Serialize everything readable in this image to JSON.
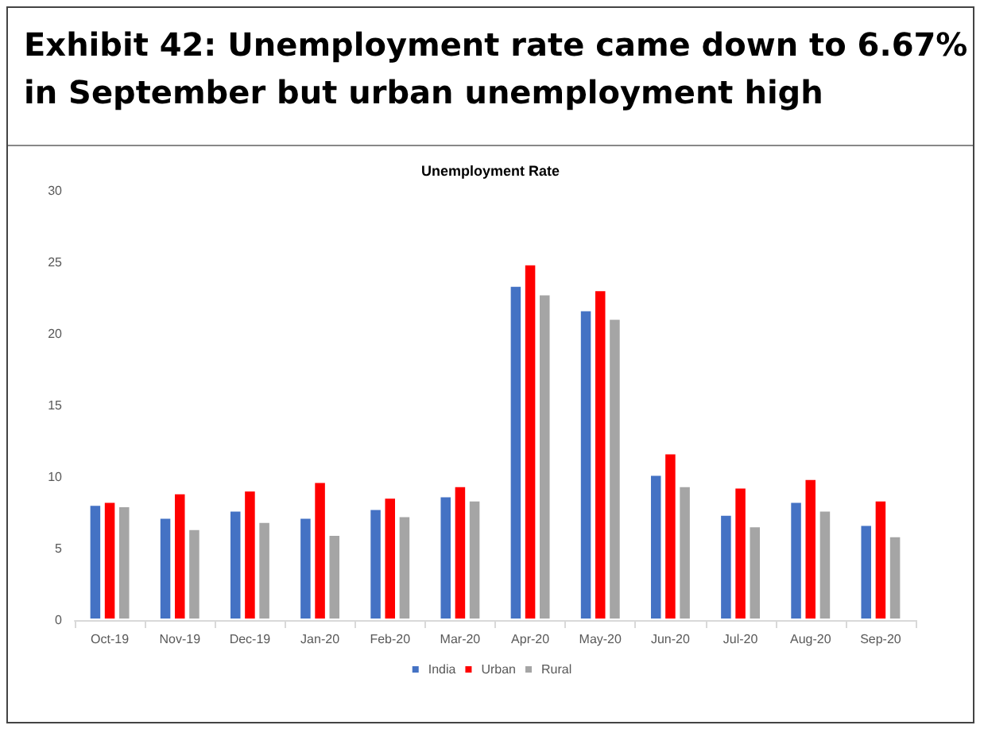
{
  "chart_data": {
    "type": "bar",
    "title": "Exhibit 42: Unemployment rate came down to 6.67% in September but urban unemployment high",
    "subtitle": "Unemployment Rate",
    "categories": [
      "Oct-19",
      "Nov-19",
      "Dec-19",
      "Jan-20",
      "Feb-20",
      "Mar-20",
      "Apr-20",
      "May-20",
      "Jun-20",
      "Jul-20",
      "Aug-20",
      "Sep-20"
    ],
    "series": [
      {
        "name": "India",
        "color": "#4472c4",
        "values": [
          8.1,
          7.2,
          7.7,
          7.2,
          7.8,
          8.7,
          23.4,
          21.7,
          10.2,
          7.4,
          8.3,
          6.7
        ]
      },
      {
        "name": "Urban",
        "color": "#ff0000",
        "values": [
          8.3,
          8.9,
          9.1,
          9.7,
          8.6,
          9.4,
          24.9,
          23.1,
          11.7,
          9.3,
          9.9,
          8.4
        ]
      },
      {
        "name": "Rural",
        "color": "#a5a5a5",
        "values": [
          8.0,
          6.4,
          6.9,
          6.0,
          7.3,
          8.4,
          22.8,
          21.1,
          9.4,
          6.6,
          7.7,
          5.9
        ]
      }
    ],
    "ylim": [
      0,
      30
    ],
    "yticks": [
      0,
      5,
      10,
      15,
      20,
      25,
      30
    ],
    "grid": false,
    "legend": "bottom"
  }
}
